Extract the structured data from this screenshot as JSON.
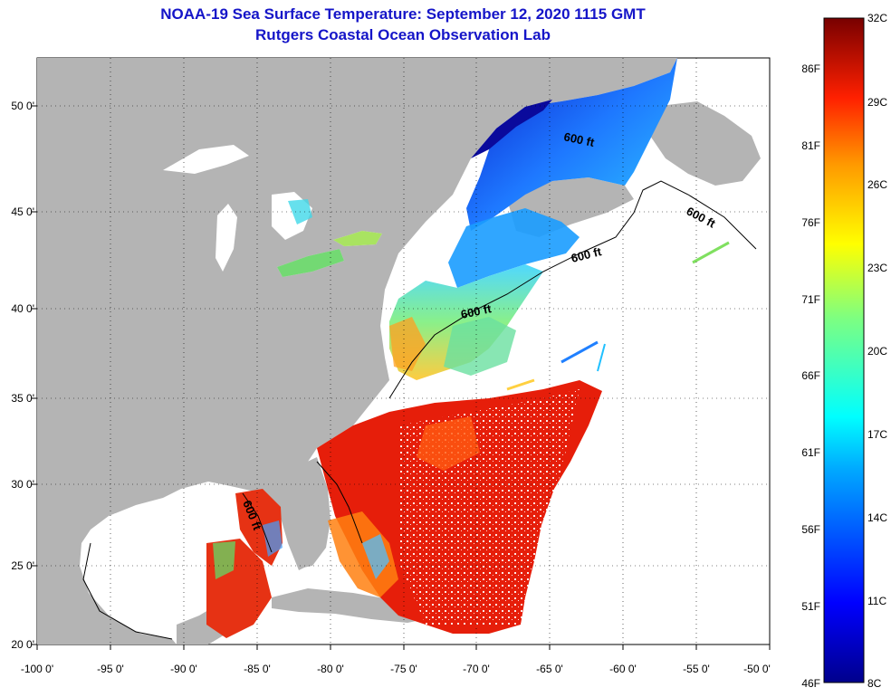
{
  "title_line1": "NOAA-19 Sea Surface Temperature:  September 12, 2020 1115 GMT",
  "title_line2": "Rutgers Coastal Ocean Observation Lab",
  "lat_labels": [
    "50 0'",
    "45 0'",
    "40 0'",
    "35 0'",
    "30 0'",
    "25 0'",
    "20 0'"
  ],
  "lon_labels": [
    "-100 0'",
    "-95 0'",
    "-90 0'",
    "-85 0'",
    "-80 0'",
    "-75 0'",
    "-70 0'",
    "-65 0'",
    "-60 0'",
    "-55 0'",
    "-50 0'"
  ],
  "contour_label": "600 ft",
  "colorbar": {
    "celsius": [
      "32C",
      "29C",
      "26C",
      "23C",
      "20C",
      "17C",
      "14C",
      "11C",
      "8C"
    ],
    "fahrenheit": [
      "86F",
      "81F",
      "76F",
      "71F",
      "66F",
      "61F",
      "56F",
      "51F",
      "46F"
    ]
  },
  "colors": {
    "title": "#1515c8",
    "land": "#b4b4b4",
    "cold": "#00008c",
    "warm": "#e61e0a"
  }
}
